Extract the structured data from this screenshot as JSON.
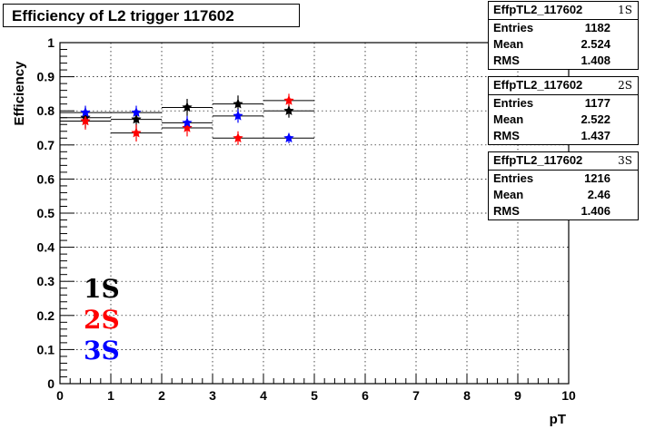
{
  "title": "Efficiency of L2 trigger 117602",
  "stats": [
    {
      "name": "EffpTL2_117602",
      "tag": "1S",
      "rows": [
        {
          "label": "Entries",
          "value": "1182"
        },
        {
          "label": "Mean",
          "value": "2.524"
        },
        {
          "label": "RMS",
          "value": "1.408"
        }
      ]
    },
    {
      "name": "EffpTL2_117602",
      "tag": "2S",
      "rows": [
        {
          "label": "Entries",
          "value": "1177"
        },
        {
          "label": "Mean",
          "value": "2.522"
        },
        {
          "label": "RMS",
          "value": "1.437"
        }
      ]
    },
    {
      "name": "EffpTL2_117602",
      "tag": "3S",
      "rows": [
        {
          "label": "Entries",
          "value": "1216"
        },
        {
          "label": "Mean",
          "value": "2.46"
        },
        {
          "label": "RMS",
          "value": "1.406"
        }
      ]
    }
  ],
  "legend": [
    {
      "label": "1S",
      "color": "#000000"
    },
    {
      "label": "2S",
      "color": "#ff0000"
    },
    {
      "label": "3S",
      "color": "#0000ff"
    }
  ],
  "chart_data": {
    "type": "scatter",
    "title": "Efficiency of L2 trigger 117602",
    "xlabel": "pT",
    "ylabel": "Efficiency",
    "xlim": [
      0,
      10
    ],
    "ylim": [
      0,
      1
    ],
    "grid": true,
    "x_ticks": [
      "0",
      "1",
      "2",
      "3",
      "4",
      "5",
      "6",
      "7",
      "8",
      "9",
      "10"
    ],
    "y_ticks": [
      "0",
      "0.1",
      "0.2",
      "0.3",
      "0.4",
      "0.5",
      "0.6",
      "0.7",
      "0.8",
      "0.9",
      "1"
    ],
    "x": [
      0.5,
      1.5,
      2.5,
      3.5,
      4.5
    ],
    "series": [
      {
        "name": "1S",
        "color": "#000000",
        "values": [
          0.78,
          0.775,
          0.81,
          0.82,
          0.8
        ],
        "errors": [
          0.03,
          0.03,
          0.025,
          0.025,
          0.02
        ]
      },
      {
        "name": "2S",
        "color": "#ff0000",
        "values": [
          0.77,
          0.735,
          0.75,
          0.72,
          0.83
        ],
        "errors": [
          0.025,
          0.025,
          0.025,
          0.02,
          0.02
        ]
      },
      {
        "name": "3S",
        "color": "#0000ff",
        "values": [
          0.795,
          0.795,
          0.765,
          0.785,
          0.72
        ],
        "errors": [
          0.02,
          0.02,
          0.02,
          0.02,
          0.015
        ]
      }
    ]
  }
}
